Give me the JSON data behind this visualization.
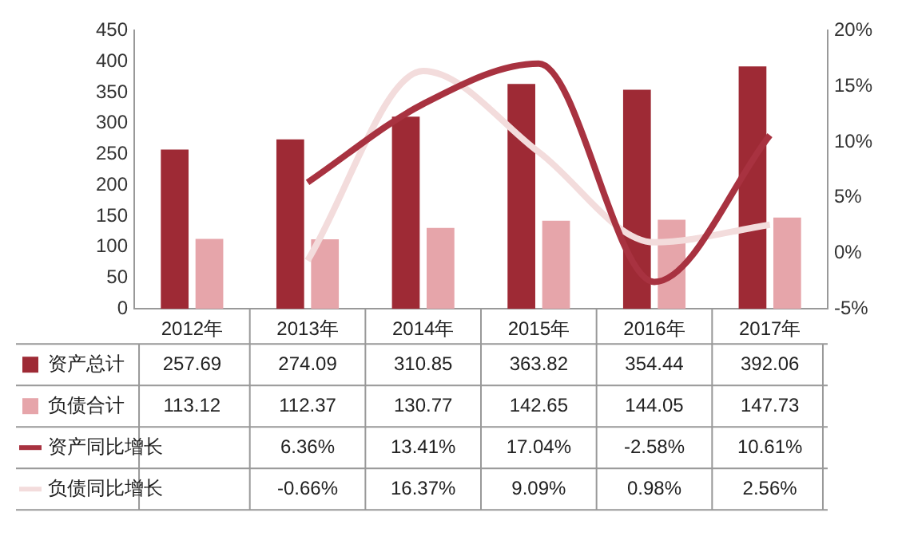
{
  "chart_data": {
    "type": "bar",
    "categories": [
      "2012年",
      "2013年",
      "2014年",
      "2015年",
      "2016年",
      "2017年"
    ],
    "ylim": [
      0,
      450
    ],
    "yticks": [
      0,
      50,
      100,
      150,
      200,
      250,
      300,
      350,
      400,
      450
    ],
    "y2lim": [
      -5,
      20
    ],
    "y2ticks": [
      {
        "value": -5,
        "label": "-5%"
      },
      {
        "value": 0,
        "label": "0%"
      },
      {
        "value": 5,
        "label": "5%"
      },
      {
        "value": 10,
        "label": "10%"
      },
      {
        "value": 15,
        "label": "15%"
      },
      {
        "value": 20,
        "label": "20%"
      }
    ],
    "legend": "bottom",
    "series": [
      {
        "name": "资产总计",
        "color": "#9e2a35",
        "values": [
          257.69,
          274.09,
          310.85,
          363.82,
          354.44,
          392.06
        ],
        "value_labels": [
          "257.69",
          "274.09",
          "310.85",
          "363.82",
          "354.44",
          "392.06"
        ]
      },
      {
        "name": "负债合计",
        "color": "#e6a5aa",
        "values": [
          113.12,
          112.37,
          130.77,
          142.65,
          144.05,
          147.73
        ],
        "value_labels": [
          "113.12",
          "112.37",
          "130.77",
          "142.65",
          "144.05",
          "147.73"
        ]
      },
      {
        "name": "资产同比增长",
        "type": "line",
        "axis": "y2",
        "color": "#a83240",
        "values": [
          null,
          6.36,
          13.41,
          17.04,
          -2.58,
          10.61
        ],
        "value_labels": [
          null,
          "6.36%",
          "13.41%",
          "17.04%",
          "-2.58%",
          "10.61%"
        ]
      },
      {
        "name": "负债同比增长",
        "type": "line",
        "axis": "y2",
        "color": "#f3dcdc",
        "values": [
          null,
          -0.66,
          16.37,
          9.09,
          0.98,
          2.56
        ],
        "value_labels": [
          null,
          "-0.66%",
          "16.37%",
          "9.09%",
          "0.98%",
          "2.56%"
        ]
      }
    ]
  }
}
